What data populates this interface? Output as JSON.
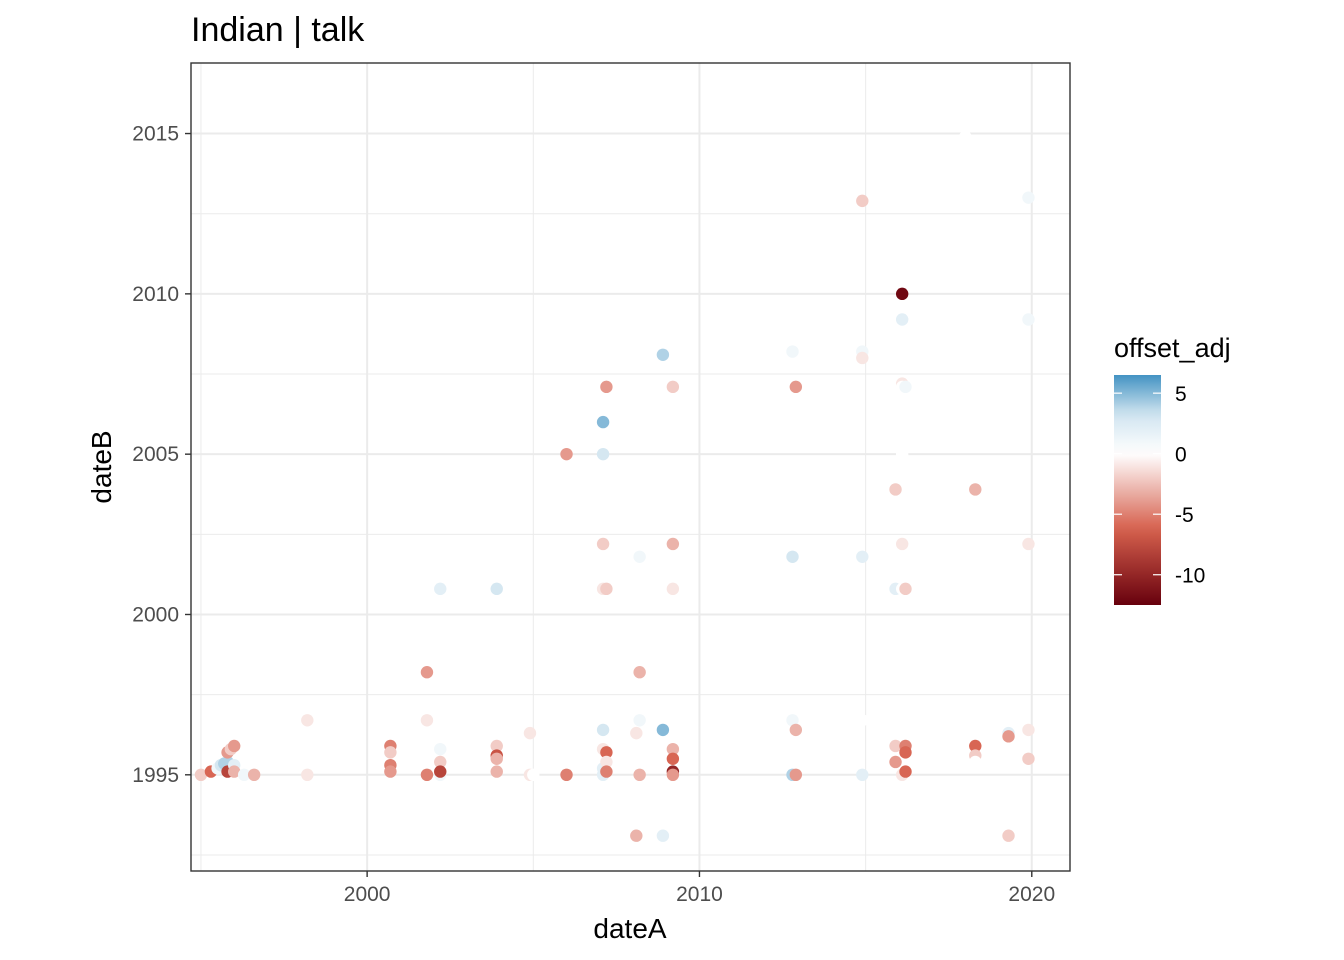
{
  "chart_data": {
    "type": "scatter",
    "title": "Indian | talk",
    "xlabel": "dateA",
    "ylabel": "dateB",
    "xlim": [
      1994.7,
      2021.15
    ],
    "ylim": [
      1992.0,
      2017.2
    ],
    "x_ticks": [
      2000,
      2010,
      2020
    ],
    "y_ticks": [
      1995,
      2000,
      2005,
      2010,
      2015
    ],
    "grid": true,
    "legend": {
      "title": "offset_adj",
      "position": "right",
      "labels": [
        5,
        0,
        -5,
        -10
      ],
      "range": [
        -12.5,
        6.5
      ],
      "colors": {
        "low": "#67000d",
        "midlow": "#d6604d",
        "mid": "#ffffff",
        "midhigh": "#d1e5f0",
        "high": "#4393c3"
      }
    },
    "points": [
      {
        "x": 1995.0,
        "y": 1995.0,
        "c": -2
      },
      {
        "x": 1995.3,
        "y": 1995.1,
        "c": -6
      },
      {
        "x": 1995.5,
        "y": 1995.2,
        "c": 1
      },
      {
        "x": 1995.6,
        "y": 1995.3,
        "c": 3
      },
      {
        "x": 1995.7,
        "y": 1995.35,
        "c": 4
      },
      {
        "x": 1995.8,
        "y": 1995.4,
        "c": 4
      },
      {
        "x": 1995.8,
        "y": 1995.1,
        "c": -8
      },
      {
        "x": 1995.8,
        "y": 1995.7,
        "c": -4
      },
      {
        "x": 1995.9,
        "y": 1995.8,
        "c": -2
      },
      {
        "x": 1996.0,
        "y": 1995.3,
        "c": 2
      },
      {
        "x": 1996.0,
        "y": 1995.9,
        "c": -4
      },
      {
        "x": 1996.0,
        "y": 1995.1,
        "c": -3
      },
      {
        "x": 1996.3,
        "y": 1995.0,
        "c": 1
      },
      {
        "x": 1996.6,
        "y": 1995.0,
        "c": -3
      },
      {
        "x": 1996.3,
        "y": 1993.1,
        "c": 0
      },
      {
        "x": 1998.2,
        "y": 1996.7,
        "c": -1
      },
      {
        "x": 1998.2,
        "y": 1995.0,
        "c": -1
      },
      {
        "x": 2000.7,
        "y": 1995.9,
        "c": -5
      },
      {
        "x": 2000.7,
        "y": 1995.7,
        "c": -2
      },
      {
        "x": 2000.7,
        "y": 1995.3,
        "c": -5
      },
      {
        "x": 2000.7,
        "y": 1995.1,
        "c": -4
      },
      {
        "x": 2001.8,
        "y": 1998.2,
        "c": -4
      },
      {
        "x": 2001.8,
        "y": 1996.7,
        "c": -1
      },
      {
        "x": 2001.8,
        "y": 1995.0,
        "c": -5
      },
      {
        "x": 2002.2,
        "y": 2000.8,
        "c": 2
      },
      {
        "x": 2002.2,
        "y": 1995.8,
        "c": 1
      },
      {
        "x": 2002.2,
        "y": 1995.4,
        "c": -2
      },
      {
        "x": 2002.2,
        "y": 1995.0,
        "c": 1
      },
      {
        "x": 2002.2,
        "y": 1995.1,
        "c": -8
      },
      {
        "x": 2003.9,
        "y": 2000.8,
        "c": 3
      },
      {
        "x": 2003.9,
        "y": 1995.9,
        "c": -2
      },
      {
        "x": 2003.9,
        "y": 1995.6,
        "c": -7
      },
      {
        "x": 2003.9,
        "y": 1995.5,
        "c": -3
      },
      {
        "x": 2003.9,
        "y": 1995.1,
        "c": -3
      },
      {
        "x": 2004.9,
        "y": 1996.3,
        "c": -1
      },
      {
        "x": 2004.9,
        "y": 1995.0,
        "c": -1
      },
      {
        "x": 2005.0,
        "y": 1995.0,
        "c": 0
      },
      {
        "x": 2006.0,
        "y": 2005.0,
        "c": -4
      },
      {
        "x": 2006.0,
        "y": 1995.0,
        "c": -5
      },
      {
        "x": 2007.1,
        "y": 2006.0,
        "c": 5
      },
      {
        "x": 2007.1,
        "y": 2005.0,
        "c": 3
      },
      {
        "x": 2007.1,
        "y": 2002.2,
        "c": -2
      },
      {
        "x": 2007.1,
        "y": 2000.8,
        "c": -1
      },
      {
        "x": 2007.1,
        "y": 1996.4,
        "c": 3
      },
      {
        "x": 2007.1,
        "y": 1995.8,
        "c": -1
      },
      {
        "x": 2007.1,
        "y": 1995.2,
        "c": 2
      },
      {
        "x": 2007.1,
        "y": 1995.0,
        "c": 2
      },
      {
        "x": 2007.2,
        "y": 2007.1,
        "c": -4
      },
      {
        "x": 2007.2,
        "y": 2003.9,
        "c": 0
      },
      {
        "x": 2007.2,
        "y": 2000.8,
        "c": -2
      },
      {
        "x": 2007.2,
        "y": 1995.7,
        "c": -6
      },
      {
        "x": 2007.2,
        "y": 1995.4,
        "c": -1
      },
      {
        "x": 2007.2,
        "y": 1995.1,
        "c": -5
      },
      {
        "x": 2008.1,
        "y": 1996.3,
        "c": -1
      },
      {
        "x": 2008.2,
        "y": 2001.8,
        "c": 1
      },
      {
        "x": 2008.2,
        "y": 1998.2,
        "c": -3
      },
      {
        "x": 2008.2,
        "y": 1996.7,
        "c": 1
      },
      {
        "x": 2008.2,
        "y": 1995.0,
        "c": -3
      },
      {
        "x": 2008.1,
        "y": 1993.1,
        "c": -3
      },
      {
        "x": 2008.9,
        "y": 2008.1,
        "c": 4
      },
      {
        "x": 2008.9,
        "y": 1996.4,
        "c": 5
      },
      {
        "x": 2008.9,
        "y": 1993.1,
        "c": 2
      },
      {
        "x": 2009.2,
        "y": 2007.1,
        "c": -2
      },
      {
        "x": 2009.2,
        "y": 2002.2,
        "c": -3
      },
      {
        "x": 2009.2,
        "y": 2000.8,
        "c": -1
      },
      {
        "x": 2009.2,
        "y": 1995.8,
        "c": -3
      },
      {
        "x": 2009.2,
        "y": 1995.5,
        "c": -6
      },
      {
        "x": 2009.2,
        "y": 1995.1,
        "c": -10
      },
      {
        "x": 2009.2,
        "y": 1995.0,
        "c": -4
      },
      {
        "x": 2012.8,
        "y": 2008.2,
        "c": 1
      },
      {
        "x": 2012.8,
        "y": 2001.8,
        "c": 3
      },
      {
        "x": 2012.8,
        "y": 1996.7,
        "c": 1
      },
      {
        "x": 2012.8,
        "y": 1995.0,
        "c": 4
      },
      {
        "x": 2012.9,
        "y": 2007.1,
        "c": -4
      },
      {
        "x": 2012.9,
        "y": 1996.4,
        "c": -3
      },
      {
        "x": 2012.9,
        "y": 1995.0,
        "c": -4
      },
      {
        "x": 2014.9,
        "y": 2012.9,
        "c": -2
      },
      {
        "x": 2014.9,
        "y": 2008.2,
        "c": 1
      },
      {
        "x": 2014.9,
        "y": 2008.0,
        "c": -1
      },
      {
        "x": 2014.9,
        "y": 2001.8,
        "c": 2
      },
      {
        "x": 2014.9,
        "y": 1996.7,
        "c": 0
      },
      {
        "x": 2014.9,
        "y": 1995.0,
        "c": 2
      },
      {
        "x": 2015.9,
        "y": 2003.9,
        "c": -2
      },
      {
        "x": 2015.9,
        "y": 2000.8,
        "c": 2
      },
      {
        "x": 2015.9,
        "y": 1995.9,
        "c": -2
      },
      {
        "x": 2015.9,
        "y": 1995.4,
        "c": -4
      },
      {
        "x": 2016.1,
        "y": 2016.1,
        "c": 0
      },
      {
        "x": 2016.1,
        "y": 2010.0,
        "c": -12
      },
      {
        "x": 2016.1,
        "y": 2009.2,
        "c": 2
      },
      {
        "x": 2016.1,
        "y": 2007.2,
        "c": -1
      },
      {
        "x": 2016.1,
        "y": 2007.1,
        "c": 0
      },
      {
        "x": 2016.1,
        "y": 2005.0,
        "c": 0
      },
      {
        "x": 2016.1,
        "y": 2002.2,
        "c": -1
      },
      {
        "x": 2016.1,
        "y": 2000.8,
        "c": 0
      },
      {
        "x": 2016.1,
        "y": 1996.4,
        "c": 0
      },
      {
        "x": 2016.1,
        "y": 1995.0,
        "c": -1
      },
      {
        "x": 2016.2,
        "y": 2007.1,
        "c": 1
      },
      {
        "x": 2016.2,
        "y": 2000.8,
        "c": -2
      },
      {
        "x": 2016.2,
        "y": 1995.9,
        "c": -5
      },
      {
        "x": 2016.2,
        "y": 1995.7,
        "c": -6
      },
      {
        "x": 2016.2,
        "y": 1995.1,
        "c": -6
      },
      {
        "x": 2018.0,
        "y": 2014.9,
        "c": 0
      },
      {
        "x": 2018.3,
        "y": 2003.9,
        "c": -3
      },
      {
        "x": 2018.3,
        "y": 1995.9,
        "c": -6
      },
      {
        "x": 2018.3,
        "y": 1995.6,
        "c": -2
      },
      {
        "x": 2018.3,
        "y": 1995.4,
        "c": 0
      },
      {
        "x": 2019.3,
        "y": 2008.1,
        "c": 0
      },
      {
        "x": 2019.3,
        "y": 1996.3,
        "c": 2
      },
      {
        "x": 2019.3,
        "y": 1996.2,
        "c": -4
      },
      {
        "x": 2019.3,
        "y": 1993.1,
        "c": -2
      },
      {
        "x": 2019.9,
        "y": 2013.0,
        "c": 1
      },
      {
        "x": 2019.9,
        "y": 2009.2,
        "c": 1
      },
      {
        "x": 2019.9,
        "y": 2002.2,
        "c": -1
      },
      {
        "x": 2019.9,
        "y": 1996.4,
        "c": -1
      },
      {
        "x": 2019.9,
        "y": 1995.5,
        "c": -2
      }
    ]
  }
}
